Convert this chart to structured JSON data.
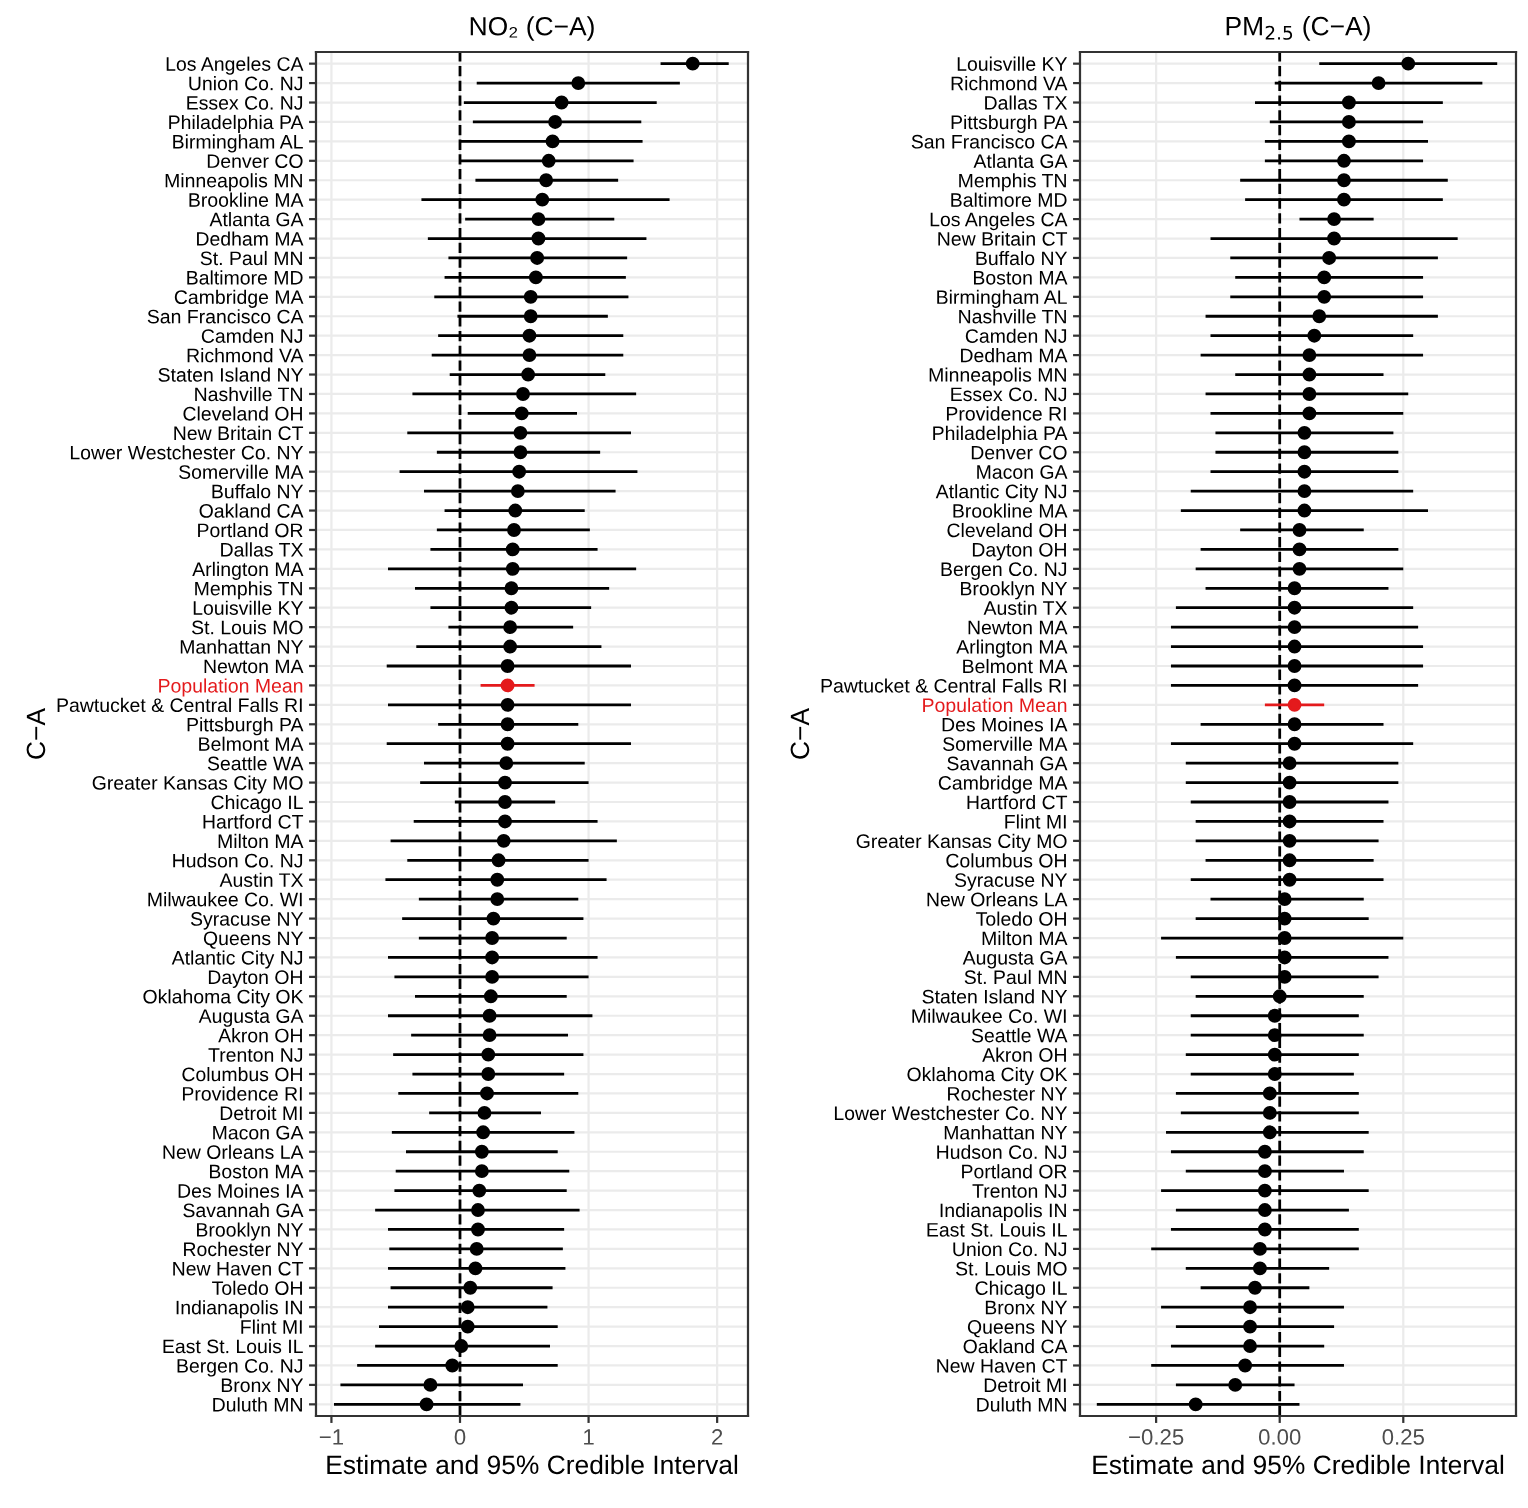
{
  "chart_data": [
    {
      "type": "scatter",
      "orientation": "horizontal",
      "title": "NO₂ (C−A)",
      "xlabel": "Estimate and 95% Credible Interval",
      "ylabel": "C−A",
      "categories": [
        "Los Angeles CA",
        "Union Co. NJ",
        "Essex Co. NJ",
        "Philadelphia PA",
        "Birmingham AL",
        "Denver CO",
        "Minneapolis MN",
        "Brookline MA",
        "Atlanta GA",
        "Dedham MA",
        "St. Paul MN",
        "Baltimore MD",
        "Cambridge MA",
        "San Francisco CA",
        "Camden NJ",
        "Richmond VA",
        "Staten Island NY",
        "Nashville TN",
        "Cleveland OH",
        "New Britain CT",
        "Lower Westchester Co. NY",
        "Somerville MA",
        "Buffalo NY",
        "Oakland CA",
        "Portland OR",
        "Dallas TX",
        "Arlington MA",
        "Memphis TN",
        "Louisville KY",
        "St. Louis MO",
        "Manhattan NY",
        "Newton MA",
        "Population Mean",
        "Pawtucket & Central Falls RI",
        "Pittsburgh PA",
        "Belmont MA",
        "Seattle WA",
        "Greater Kansas City MO",
        "Chicago IL",
        "Hartford CT",
        "Milton MA",
        "Hudson Co. NJ",
        "Austin TX",
        "Milwaukee Co. WI",
        "Syracuse NY",
        "Queens NY",
        "Atlantic City NJ",
        "Dayton OH",
        "Oklahoma City OK",
        "Augusta GA",
        "Akron OH",
        "Trenton NJ",
        "Columbus OH",
        "Providence RI",
        "Detroit MI",
        "Macon GA",
        "New Orleans LA",
        "Boston MA",
        "Des Moines IA",
        "Savannah GA",
        "Brooklyn NY",
        "Rochester NY",
        "New Haven CT",
        "Toledo OH",
        "Indianapolis IN",
        "Flint MI",
        "East St. Louis IL",
        "Bergen Co. NJ",
        "Bronx NY",
        "Duluth MN"
      ],
      "series": [
        {
          "values": [
            1.81,
            0.92,
            0.79,
            0.74,
            0.72,
            0.69,
            0.67,
            0.64,
            0.61,
            0.61,
            0.6,
            0.59,
            0.55,
            0.55,
            0.54,
            0.54,
            0.53,
            0.49,
            0.48,
            0.47,
            0.47,
            0.46,
            0.45,
            0.43,
            0.42,
            0.41,
            0.41,
            0.4,
            0.4,
            0.39,
            0.39,
            0.37,
            0.37,
            0.37,
            0.37,
            0.37,
            0.36,
            0.35,
            0.35,
            0.35,
            0.34,
            0.3,
            0.29,
            0.29,
            0.26,
            0.25,
            0.25,
            0.25,
            0.24,
            0.23,
            0.23,
            0.22,
            0.22,
            0.21,
            0.19,
            0.18,
            0.17,
            0.17,
            0.15,
            0.14,
            0.14,
            0.13,
            0.12,
            0.08,
            0.06,
            0.06,
            0.01,
            -0.06,
            -0.23,
            -0.26
          ],
          "errors": [
            [
              1.56,
              2.09
            ],
            [
              0.13,
              1.71
            ],
            [
              0.03,
              1.53
            ],
            [
              0.1,
              1.41
            ],
            [
              0.0,
              1.42
            ],
            [
              0.0,
              1.35
            ],
            [
              0.12,
              1.23
            ],
            [
              -0.3,
              1.63
            ],
            [
              0.04,
              1.2
            ],
            [
              -0.25,
              1.45
            ],
            [
              -0.09,
              1.3
            ],
            [
              -0.12,
              1.29
            ],
            [
              -0.2,
              1.31
            ],
            [
              -0.02,
              1.15
            ],
            [
              -0.17,
              1.27
            ],
            [
              -0.22,
              1.27
            ],
            [
              -0.08,
              1.13
            ],
            [
              -0.37,
              1.37
            ],
            [
              0.06,
              0.91
            ],
            [
              -0.41,
              1.33
            ],
            [
              -0.18,
              1.09
            ],
            [
              -0.47,
              1.38
            ],
            [
              -0.28,
              1.21
            ],
            [
              -0.12,
              0.97
            ],
            [
              -0.18,
              1.01
            ],
            [
              -0.23,
              1.07
            ],
            [
              -0.56,
              1.37
            ],
            [
              -0.35,
              1.16
            ],
            [
              -0.23,
              1.02
            ],
            [
              -0.09,
              0.88
            ],
            [
              -0.34,
              1.1
            ],
            [
              -0.57,
              1.33
            ],
            [
              0.16,
              0.58
            ],
            [
              -0.56,
              1.33
            ],
            [
              -0.17,
              0.92
            ],
            [
              -0.57,
              1.33
            ],
            [
              -0.28,
              0.97
            ],
            [
              -0.31,
              1.0
            ],
            [
              -0.04,
              0.74
            ],
            [
              -0.36,
              1.07
            ],
            [
              -0.54,
              1.22
            ],
            [
              -0.41,
              1.0
            ],
            [
              -0.58,
              1.14
            ],
            [
              -0.32,
              0.92
            ],
            [
              -0.45,
              0.96
            ],
            [
              -0.32,
              0.83
            ],
            [
              -0.56,
              1.07
            ],
            [
              -0.51,
              1.0
            ],
            [
              -0.35,
              0.83
            ],
            [
              -0.56,
              1.03
            ],
            [
              -0.38,
              0.84
            ],
            [
              -0.52,
              0.96
            ],
            [
              -0.37,
              0.81
            ],
            [
              -0.48,
              0.92
            ],
            [
              -0.24,
              0.63
            ],
            [
              -0.53,
              0.89
            ],
            [
              -0.42,
              0.76
            ],
            [
              -0.5,
              0.85
            ],
            [
              -0.51,
              0.83
            ],
            [
              -0.66,
              0.93
            ],
            [
              -0.56,
              0.81
            ],
            [
              -0.55,
              0.8
            ],
            [
              -0.56,
              0.82
            ],
            [
              -0.54,
              0.72
            ],
            [
              -0.56,
              0.68
            ],
            [
              -0.63,
              0.76
            ],
            [
              -0.66,
              0.7
            ],
            [
              -0.8,
              0.76
            ],
            [
              -0.93,
              0.49
            ],
            [
              -0.98,
              0.47
            ]
          ],
          "colors": [
            "#000000",
            "#000000",
            "#000000",
            "#000000",
            "#000000",
            "#000000",
            "#000000",
            "#000000",
            "#000000",
            "#000000",
            "#000000",
            "#000000",
            "#000000",
            "#000000",
            "#000000",
            "#000000",
            "#000000",
            "#000000",
            "#000000",
            "#000000",
            "#000000",
            "#000000",
            "#000000",
            "#000000",
            "#000000",
            "#000000",
            "#000000",
            "#000000",
            "#000000",
            "#000000",
            "#000000",
            "#000000",
            "#e41a1c",
            "#000000",
            "#000000",
            "#000000",
            "#000000",
            "#000000",
            "#000000",
            "#000000",
            "#000000",
            "#000000",
            "#000000",
            "#000000",
            "#000000",
            "#000000",
            "#000000",
            "#000000",
            "#000000",
            "#000000",
            "#000000",
            "#000000",
            "#000000",
            "#000000",
            "#000000",
            "#000000",
            "#000000",
            "#000000",
            "#000000",
            "#000000",
            "#000000",
            "#000000",
            "#000000",
            "#000000",
            "#000000",
            "#000000",
            "#000000",
            "#000000",
            "#000000",
            "#000000"
          ]
        }
      ],
      "xlim": [
        -1.12,
        2.24
      ],
      "xticks": [
        {
          "value": -1,
          "label": "−1"
        },
        0,
        1,
        2
      ],
      "ref_lines": [
        {
          "axis": "x",
          "value": 0,
          "line_style": "dashed",
          "color": "#000000"
        }
      ],
      "grid": true,
      "marker": "circle",
      "legend": false
    },
    {
      "type": "scatter",
      "orientation": "horizontal",
      "title": "PM$_{2.5}$ (C−A)",
      "xlabel": "Estimate and 95% Credible Interval",
      "ylabel": "C−A",
      "categories": [
        "Louisville KY",
        "Richmond VA",
        "Dallas TX",
        "Pittsburgh PA",
        "San Francisco CA",
        "Atlanta GA",
        "Memphis TN",
        "Baltimore MD",
        "Los Angeles CA",
        "New Britain CT",
        "Buffalo NY",
        "Boston MA",
        "Birmingham AL",
        "Nashville TN",
        "Camden NJ",
        "Dedham MA",
        "Minneapolis MN",
        "Essex Co. NJ",
        "Providence RI",
        "Philadelphia PA",
        "Denver CO",
        "Macon GA",
        "Atlantic City NJ",
        "Brookline MA",
        "Cleveland OH",
        "Dayton OH",
        "Bergen Co. NJ",
        "Brooklyn NY",
        "Austin TX",
        "Newton MA",
        "Arlington MA",
        "Belmont MA",
        "Pawtucket & Central Falls RI",
        "Population Mean",
        "Des Moines IA",
        "Somerville MA",
        "Savannah GA",
        "Cambridge MA",
        "Hartford CT",
        "Flint MI",
        "Greater Kansas City MO",
        "Columbus OH",
        "Syracuse NY",
        "New Orleans LA",
        "Toledo OH",
        "Milton MA",
        "Augusta GA",
        "St. Paul MN",
        "Staten Island NY",
        "Milwaukee Co. WI",
        "Seattle WA",
        "Akron OH",
        "Oklahoma City OK",
        "Rochester NY",
        "Lower Westchester Co. NY",
        "Manhattan NY",
        "Hudson Co. NJ",
        "Portland OR",
        "Trenton NJ",
        "Indianapolis IN",
        "East St. Louis IL",
        "Union Co. NJ",
        "St. Louis MO",
        "Chicago IL",
        "Bronx NY",
        "Queens NY",
        "Oakland CA",
        "New Haven CT",
        "Detroit MI",
        "Duluth MN"
      ],
      "series": [
        {
          "values": [
            0.26,
            0.2,
            0.14,
            0.14,
            0.14,
            0.13,
            0.13,
            0.13,
            0.11,
            0.11,
            0.1,
            0.09,
            0.09,
            0.08,
            0.07,
            0.06,
            0.06,
            0.06,
            0.06,
            0.05,
            0.05,
            0.05,
            0.05,
            0.05,
            0.04,
            0.04,
            0.04,
            0.03,
            0.03,
            0.03,
            0.03,
            0.03,
            0.03,
            0.03,
            0.03,
            0.03,
            0.02,
            0.02,
            0.02,
            0.02,
            0.02,
            0.02,
            0.02,
            0.01,
            0.01,
            0.01,
            0.01,
            0.01,
            0.0,
            -0.01,
            -0.01,
            -0.01,
            -0.01,
            -0.02,
            -0.02,
            -0.02,
            -0.03,
            -0.03,
            -0.03,
            -0.03,
            -0.03,
            -0.04,
            -0.04,
            -0.05,
            -0.06,
            -0.06,
            -0.06,
            -0.07,
            -0.09,
            -0.17
          ],
          "errors": [
            [
              0.08,
              0.44
            ],
            [
              -0.01,
              0.41
            ],
            [
              -0.05,
              0.33
            ],
            [
              -0.02,
              0.29
            ],
            [
              -0.03,
              0.3
            ],
            [
              -0.03,
              0.29
            ],
            [
              -0.08,
              0.34
            ],
            [
              -0.07,
              0.33
            ],
            [
              0.04,
              0.19
            ],
            [
              -0.14,
              0.36
            ],
            [
              -0.1,
              0.32
            ],
            [
              -0.09,
              0.29
            ],
            [
              -0.1,
              0.29
            ],
            [
              -0.15,
              0.32
            ],
            [
              -0.14,
              0.27
            ],
            [
              -0.16,
              0.29
            ],
            [
              -0.09,
              0.21
            ],
            [
              -0.15,
              0.26
            ],
            [
              -0.14,
              0.25
            ],
            [
              -0.13,
              0.23
            ],
            [
              -0.13,
              0.24
            ],
            [
              -0.14,
              0.24
            ],
            [
              -0.18,
              0.27
            ],
            [
              -0.2,
              0.3
            ],
            [
              -0.08,
              0.17
            ],
            [
              -0.16,
              0.24
            ],
            [
              -0.17,
              0.25
            ],
            [
              -0.15,
              0.22
            ],
            [
              -0.21,
              0.27
            ],
            [
              -0.22,
              0.28
            ],
            [
              -0.22,
              0.29
            ],
            [
              -0.22,
              0.29
            ],
            [
              -0.22,
              0.28
            ],
            [
              -0.03,
              0.09
            ],
            [
              -0.16,
              0.21
            ],
            [
              -0.22,
              0.27
            ],
            [
              -0.19,
              0.24
            ],
            [
              -0.19,
              0.24
            ],
            [
              -0.18,
              0.22
            ],
            [
              -0.17,
              0.21
            ],
            [
              -0.17,
              0.2
            ],
            [
              -0.15,
              0.19
            ],
            [
              -0.18,
              0.21
            ],
            [
              -0.14,
              0.17
            ],
            [
              -0.17,
              0.18
            ],
            [
              -0.24,
              0.25
            ],
            [
              -0.21,
              0.22
            ],
            [
              -0.18,
              0.2
            ],
            [
              -0.17,
              0.17
            ],
            [
              -0.18,
              0.16
            ],
            [
              -0.18,
              0.17
            ],
            [
              -0.19,
              0.16
            ],
            [
              -0.18,
              0.15
            ],
            [
              -0.21,
              0.16
            ],
            [
              -0.2,
              0.16
            ],
            [
              -0.23,
              0.18
            ],
            [
              -0.22,
              0.17
            ],
            [
              -0.19,
              0.13
            ],
            [
              -0.24,
              0.18
            ],
            [
              -0.21,
              0.14
            ],
            [
              -0.22,
              0.16
            ],
            [
              -0.26,
              0.16
            ],
            [
              -0.19,
              0.1
            ],
            [
              -0.16,
              0.06
            ],
            [
              -0.24,
              0.13
            ],
            [
              -0.21,
              0.11
            ],
            [
              -0.22,
              0.09
            ],
            [
              -0.26,
              0.13
            ],
            [
              -0.21,
              0.03
            ],
            [
              -0.37,
              0.04
            ]
          ],
          "colors": [
            "#000000",
            "#000000",
            "#000000",
            "#000000",
            "#000000",
            "#000000",
            "#000000",
            "#000000",
            "#000000",
            "#000000",
            "#000000",
            "#000000",
            "#000000",
            "#000000",
            "#000000",
            "#000000",
            "#000000",
            "#000000",
            "#000000",
            "#000000",
            "#000000",
            "#000000",
            "#000000",
            "#000000",
            "#000000",
            "#000000",
            "#000000",
            "#000000",
            "#000000",
            "#000000",
            "#000000",
            "#000000",
            "#000000",
            "#e41a1c",
            "#000000",
            "#000000",
            "#000000",
            "#000000",
            "#000000",
            "#000000",
            "#000000",
            "#000000",
            "#000000",
            "#000000",
            "#000000",
            "#000000",
            "#000000",
            "#000000",
            "#000000",
            "#000000",
            "#000000",
            "#000000",
            "#000000",
            "#000000",
            "#000000",
            "#000000",
            "#000000",
            "#000000",
            "#000000",
            "#000000",
            "#000000",
            "#000000",
            "#000000",
            "#000000",
            "#000000",
            "#000000",
            "#000000",
            "#000000",
            "#000000",
            "#000000"
          ]
        }
      ],
      "xlim": [
        -0.404,
        0.478
      ],
      "xticks": [
        {
          "value": -0.25,
          "label": "−0.25"
        },
        {
          "value": 0,
          "label": "0.00"
        },
        0.25
      ],
      "ref_lines": [
        {
          "axis": "x",
          "value": 0,
          "line_style": "dashed",
          "color": "#000000"
        }
      ],
      "grid": true,
      "marker": "circle",
      "legend": false
    }
  ]
}
